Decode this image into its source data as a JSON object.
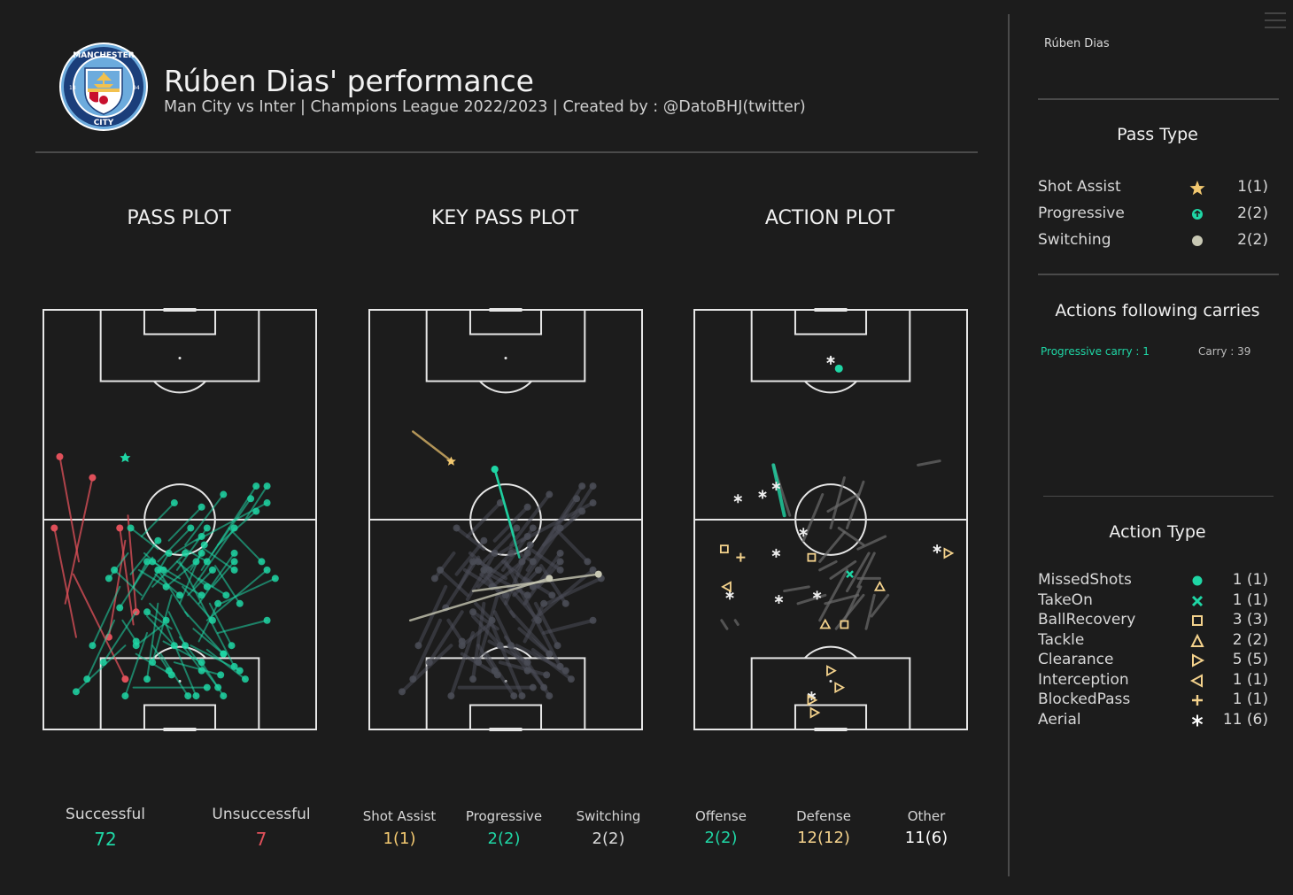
{
  "header": {
    "title": "Rúben Dias' performance",
    "subtitle": "Man City vs Inter | Champions League 2022/2023 | Created by : @DatoBHJ(twitter)",
    "crest_text": "MANCHESTER CITY",
    "crest_years": [
      "18",
      "94"
    ]
  },
  "plots": {
    "pass_title": "PASS PLOT",
    "key_title": "KEY PASS PLOT",
    "action_title": "ACTION PLOT"
  },
  "bottom_stats": {
    "successful_label": "Successful",
    "successful_value": "72",
    "unsuccessful_label": "Unsuccessful",
    "unsuccessful_value": "7",
    "shot_assist_label": "Shot Assist",
    "shot_assist_value": "1(1)",
    "progressive_label": "Progressive",
    "progressive_value": "2(2)",
    "switching_label": "Switching",
    "switching_value": "2(2)",
    "offense_label": "Offense",
    "offense_value": "2(2)",
    "defense_label": "Defense",
    "defense_value": "12(12)",
    "other_label": "Other",
    "other_value": "11(6)"
  },
  "sidebar": {
    "player_name": "Rúben Dias",
    "pass_type_title": "Pass Type",
    "pass_types": [
      {
        "label": "Shot Assist",
        "count": "1(1)",
        "icon": "star-icon"
      },
      {
        "label": "Progressive",
        "count": "2(2)",
        "icon": "progressive-circle-icon"
      },
      {
        "label": "Switching",
        "count": "2(2)",
        "icon": "circle-icon"
      }
    ],
    "carries_title": "Actions following carries",
    "progressive_carry": "Progressive carry : 1",
    "carry": "Carry : 39",
    "action_type_title": "Action Type",
    "action_types": [
      {
        "label": "MissedShots",
        "count": "1 (1)",
        "icon": "dot-icon"
      },
      {
        "label": "TakeOn",
        "count": "1 (1)",
        "icon": "cross-x-icon"
      },
      {
        "label": "BallRecovery",
        "count": "3 (3)",
        "icon": "square-icon"
      },
      {
        "label": "Tackle",
        "count": "2 (2)",
        "icon": "triangle-up-icon"
      },
      {
        "label": "Clearance",
        "count": "5 (5)",
        "icon": "triangle-right-icon"
      },
      {
        "label": "Interception",
        "count": "1 (1)",
        "icon": "triangle-left-icon"
      },
      {
        "label": "BlockedPass",
        "count": "1 (1)",
        "icon": "plus-icon"
      },
      {
        "label": "Aerial",
        "count": "11 (6)",
        "icon": "asterisk-icon"
      }
    ]
  },
  "colors": {
    "background": "#1c1c1c",
    "successful": "#1fd6a5",
    "unsuccessful": "#e0505a",
    "key_grey": "#4b4d57",
    "shot_assist": "#f2c870",
    "switching": "#c8c8b4",
    "defense": "#f4d28c",
    "pitch_lines": "#e6e6e6"
  },
  "chart_data": [
    {
      "type": "scatter",
      "title": "PASS PLOT",
      "description_series": [
        {
          "name": "Successful",
          "count": 72
        },
        {
          "name": "Unsuccessful",
          "count": 7
        }
      ],
      "successful_passes": [
        [
          50,
          60,
          70,
          85
        ],
        [
          44,
          63,
          58,
          68
        ],
        [
          42,
          70,
          38,
          88
        ],
        [
          34,
          72,
          22,
          84
        ],
        [
          28,
          66,
          18,
          80
        ],
        [
          40,
          59,
          28,
          71
        ],
        [
          52,
          56,
          66,
          44
        ],
        [
          58,
          62,
          78,
          42
        ],
        [
          62,
          58,
          76,
          45
        ],
        [
          55,
          66,
          70,
          52
        ],
        [
          47,
          68,
          40,
          84
        ],
        [
          45,
          75,
          56,
          92
        ],
        [
          52,
          72,
          66,
          82
        ],
        [
          60,
          74,
          82,
          62
        ],
        [
          38,
          77,
          30,
          92
        ],
        [
          50,
          78,
          64,
          90
        ],
        [
          54,
          80,
          72,
          86
        ],
        [
          65,
          70,
          85,
          64
        ],
        [
          30,
          80,
          12,
          91
        ],
        [
          26,
          74,
          16,
          88
        ],
        [
          36,
          69,
          46,
          58
        ],
        [
          32,
          63,
          42,
          55
        ],
        [
          49,
          62,
          60,
          52
        ],
        [
          57,
          64,
          67,
          68
        ],
        [
          43,
          82,
          53,
          92
        ],
        [
          48,
          84,
          65,
          87
        ],
        [
          60,
          81,
          74,
          88
        ],
        [
          64,
          77,
          82,
          74
        ],
        [
          42,
          60,
          54,
          52
        ],
        [
          40,
          66,
          52,
          58
        ],
        [
          57,
          70,
          70,
          58
        ],
        [
          53,
          73,
          42,
          62
        ],
        [
          31,
          58,
          24,
          64
        ],
        [
          36,
          54,
          48,
          46
        ],
        [
          56,
          55,
          82,
          46
        ],
        [
          74,
          50,
          82,
          42
        ],
        [
          64,
          56,
          78,
          48
        ],
        [
          46,
          55,
          58,
          47
        ],
        [
          33,
          90,
          60,
          90
        ],
        [
          61,
          70,
          69,
          80
        ],
        [
          51,
          66,
          62,
          74
        ],
        [
          45,
          66,
          56,
          60
        ],
        [
          38,
          73,
          48,
          80
        ],
        [
          55,
          76,
          66,
          82
        ],
        [
          50,
          70,
          59,
          56
        ],
        [
          68,
          52,
          80,
          60
        ],
        [
          35,
          62,
          45,
          66
        ],
        [
          49,
          60,
          60,
          66
        ],
        [
          44,
          79,
          58,
          84
        ],
        [
          34,
          82,
          47,
          87
        ],
        [
          58,
          84,
          66,
          92
        ],
        [
          52,
          57,
          60,
          60
        ],
        [
          41,
          63,
          50,
          68
        ],
        [
          36,
          68,
          26,
          62
        ],
        [
          29,
          74,
          34,
          79
        ],
        [
          47,
          76,
          38,
          72
        ],
        [
          59,
          57,
          70,
          62
        ],
        [
          63,
          61,
          72,
          70
        ],
        [
          42,
          57,
          32,
          52
        ],
        [
          54,
          62,
          58,
          58
        ],
        [
          46,
          72,
          52,
          80
        ],
        [
          39,
          70,
          45,
          74
        ],
        [
          50,
          64,
          40,
          60
        ],
        [
          62,
          66,
          70,
          60
        ],
        [
          57,
          79,
          64,
          70
        ],
        [
          40,
          80,
          46,
          86
        ],
        [
          48,
          58,
          58,
          54
        ],
        [
          33,
          66,
          38,
          60
        ],
        [
          53,
          68,
          62,
          62
        ],
        [
          44,
          75,
          34,
          80
        ],
        [
          51,
          80,
          58,
          86
        ],
        [
          37,
          58,
          44,
          62
        ]
      ],
      "unsuccessful_passes": [
        [
          12,
          78,
          4,
          52
        ],
        [
          11,
          63,
          30,
          88
        ],
        [
          31,
          49,
          34,
          72
        ],
        [
          30,
          55,
          24,
          78
        ],
        [
          8,
          70,
          18,
          40
        ],
        [
          13,
          60,
          6,
          35
        ],
        [
          33,
          75,
          28,
          52
        ]
      ]
    },
    {
      "type": "scatter",
      "title": "KEY PASS PLOT",
      "series": [
        {
          "name": "Shot Assist",
          "count": "1(1)"
        },
        {
          "name": "Progressive",
          "count": "2(2)"
        },
        {
          "name": "Switching",
          "count": "2(2)"
        }
      ],
      "shot_assist": [
        [
          30,
          36,
          16,
          29
        ]
      ],
      "progressive": [
        [
          55,
          59,
          46,
          38
        ],
        [
          53,
          54,
          46,
          38
        ]
      ],
      "switching": [
        [
          38,
          67,
          84,
          63
        ],
        [
          15,
          74,
          66,
          64
        ]
      ]
    },
    {
      "type": "scatter",
      "title": "ACTION PLOT",
      "series": [
        {
          "name": "Offense",
          "count": "2(2)"
        },
        {
          "name": "Defense",
          "count": "12(12)"
        },
        {
          "name": "Other",
          "count": "11(6)"
        }
      ],
      "actions": [
        {
          "t": "dot",
          "x": 53,
          "y": 14
        },
        {
          "t": "ast",
          "x": 50,
          "y": 12
        },
        {
          "t": "ast",
          "x": 16,
          "y": 45
        },
        {
          "t": "ast",
          "x": 25,
          "y": 44
        },
        {
          "t": "ast",
          "x": 30,
          "y": 42
        },
        {
          "t": "ast",
          "x": 40,
          "y": 53
        },
        {
          "t": "ast",
          "x": 30,
          "y": 58
        },
        {
          "t": "ast",
          "x": 45,
          "y": 68
        },
        {
          "t": "ast",
          "x": 13,
          "y": 68
        },
        {
          "t": "ast",
          "x": 31,
          "y": 69
        },
        {
          "t": "ast",
          "x": 89,
          "y": 57
        },
        {
          "t": "ast",
          "x": 43,
          "y": 92
        },
        {
          "t": "x",
          "x": 57,
          "y": 63
        },
        {
          "t": "sq",
          "x": 11,
          "y": 57
        },
        {
          "t": "sq",
          "x": 43,
          "y": 59
        },
        {
          "t": "sq",
          "x": 55,
          "y": 75
        },
        {
          "t": "tri",
          "x": 68,
          "y": 66
        },
        {
          "t": "tri",
          "x": 48,
          "y": 75
        },
        {
          "t": "rt",
          "x": 93,
          "y": 58
        },
        {
          "t": "rt",
          "x": 50,
          "y": 86
        },
        {
          "t": "rt",
          "x": 53,
          "y": 90
        },
        {
          "t": "rt",
          "x": 43,
          "y": 93
        },
        {
          "t": "rt",
          "x": 44,
          "y": 96
        },
        {
          "t": "lt",
          "x": 12,
          "y": 66
        },
        {
          "t": "plus",
          "x": 17,
          "y": 59
        }
      ],
      "carries": [
        [
          29,
          37,
          35,
          49
        ],
        [
          49,
          48,
          60,
          44
        ],
        [
          50,
          52,
          55,
          40
        ],
        [
          62,
          41,
          56,
          52
        ],
        [
          40,
          55,
          47,
          44
        ],
        [
          53,
          52,
          62,
          56
        ],
        [
          60,
          57,
          70,
          54
        ],
        [
          46,
          60,
          55,
          53
        ],
        [
          50,
          64,
          59,
          60
        ],
        [
          56,
          67,
          64,
          58
        ],
        [
          48,
          70,
          60,
          68
        ],
        [
          46,
          74,
          56,
          62
        ],
        [
          52,
          76,
          62,
          68
        ],
        [
          60,
          66,
          66,
          58
        ],
        [
          33,
          67,
          42,
          66
        ],
        [
          38,
          70,
          48,
          68
        ],
        [
          63,
          76,
          66,
          68
        ],
        [
          55,
          74,
          61,
          66
        ],
        [
          65,
          73,
          71,
          68
        ],
        [
          82,
          37,
          90,
          36
        ],
        [
          46,
          62,
          52,
          60
        ],
        [
          60,
          64,
          68,
          64
        ],
        [
          10,
          74,
          12,
          76
        ],
        [
          15,
          74,
          16,
          75
        ]
      ]
    }
  ]
}
